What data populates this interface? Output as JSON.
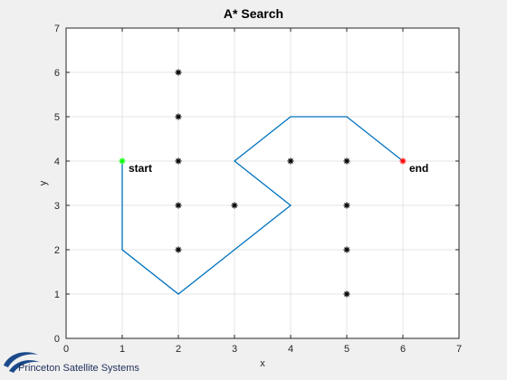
{
  "chart_data": {
    "type": "scatter",
    "title": "A* Search",
    "xlabel": "x",
    "ylabel": "y",
    "xlim": [
      0,
      7
    ],
    "ylim": [
      0,
      7
    ],
    "xticks": [
      "0",
      "1",
      "2",
      "3",
      "4",
      "5",
      "6",
      "7"
    ],
    "yticks": [
      "0",
      "1",
      "2",
      "3",
      "4",
      "5",
      "6",
      "7"
    ],
    "grid": true,
    "obstacles": {
      "marker": "asterisk",
      "color": "#000000",
      "points": [
        [
          2,
          6
        ],
        [
          2,
          5
        ],
        [
          2,
          4
        ],
        [
          2,
          3
        ],
        [
          2,
          2
        ],
        [
          3,
          3
        ],
        [
          4,
          4
        ],
        [
          5,
          4
        ],
        [
          5,
          3
        ],
        [
          5,
          2
        ],
        [
          5,
          1
        ]
      ]
    },
    "path": {
      "color": "#0072bd",
      "points": [
        [
          1,
          4
        ],
        [
          1,
          2
        ],
        [
          2,
          1
        ],
        [
          4,
          3
        ],
        [
          3,
          4
        ],
        [
          4,
          5
        ],
        [
          5,
          5
        ],
        [
          6,
          4
        ]
      ]
    },
    "start": {
      "point": [
        1,
        4
      ],
      "color": "#00ff00",
      "label": "start"
    },
    "end": {
      "point": [
        6,
        4
      ],
      "color": "#ff0000",
      "label": "end"
    }
  },
  "footer": {
    "brand": "Princeton Satellite Systems",
    "logo_color": "#1a4a8a"
  }
}
